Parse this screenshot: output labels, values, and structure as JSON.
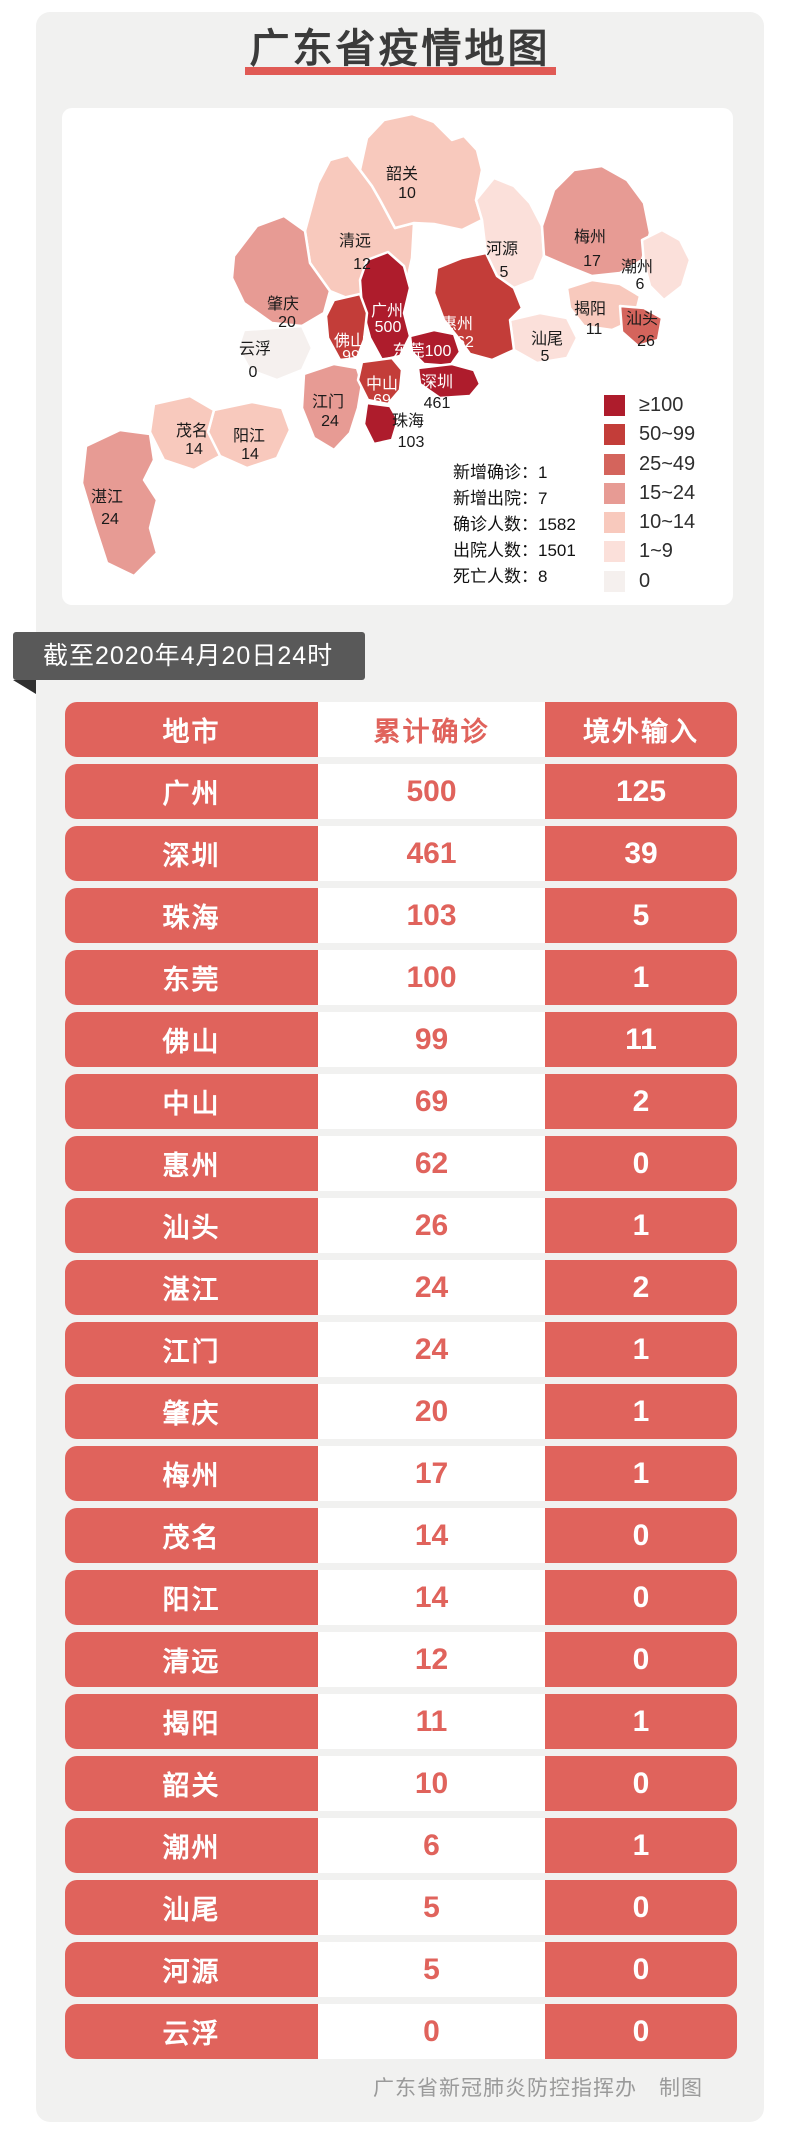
{
  "page": {
    "title": "广东省疫情地图",
    "footer": "广东省新冠肺炎防控指挥办　制图"
  },
  "banner": {
    "text": "截至2020年4月20日24时"
  },
  "colors": {
    "accent_red": "#e0635c",
    "title_underline": "#e05a55",
    "banner_bg": "#595959",
    "card_bg": "#f1f1f0",
    "tiers": [
      "#ae1c2c",
      "#c33d39",
      "#d4645c",
      "#e79b94",
      "#f8c9bd",
      "#fbe0da",
      "#f5f0ee"
    ]
  },
  "map": {
    "legend": [
      {
        "label": "≥100",
        "color": "#ae1c2c"
      },
      {
        "label": "50~99",
        "color": "#c33d39"
      },
      {
        "label": "25~49",
        "color": "#d4645c"
      },
      {
        "label": "15~24",
        "color": "#e79b94"
      },
      {
        "label": "10~14",
        "color": "#f8c9bd"
      },
      {
        "label": "1~9",
        "color": "#fbe0da"
      },
      {
        "label": "0",
        "color": "#f5f0ee"
      }
    ],
    "stats": [
      {
        "label": "新增确诊",
        "value": "1"
      },
      {
        "label": "新增出院",
        "value": "7"
      },
      {
        "label": "确诊人数",
        "value": "1582"
      },
      {
        "label": "出院人数",
        "value": "1501"
      },
      {
        "label": "死亡人数",
        "value": "8"
      }
    ],
    "cities": [
      {
        "id": "shaoguan",
        "name": "韶关",
        "value": "10",
        "tier": 4,
        "nx": 340,
        "ny": 67,
        "vx": 345,
        "vy": 86,
        "nc": "#1a1a1a",
        "vc": "#1a1a1a",
        "inline": false
      },
      {
        "id": "qingyuan",
        "name": "清远",
        "value": "12",
        "tier": 4,
        "nx": 293,
        "ny": 134,
        "vx": 300,
        "vy": 157,
        "nc": "#1a1a1a",
        "vc": "#1a1a1a",
        "inline": false
      },
      {
        "id": "heyuan",
        "name": "河源",
        "value": "5",
        "tier": 5,
        "nx": 440,
        "ny": 142,
        "vx": 442,
        "vy": 165,
        "nc": "#1a1a1a",
        "vc": "#1a1a1a",
        "inline": false
      },
      {
        "id": "meizhou",
        "name": "梅州",
        "value": "17",
        "tier": 3,
        "nx": 528,
        "ny": 130,
        "vx": 530,
        "vy": 154,
        "nc": "#1a1a1a",
        "vc": "#1a1a1a",
        "inline": false
      },
      {
        "id": "chaozhou",
        "name": "潮州",
        "value": "6",
        "tier": 5,
        "nx": 575,
        "ny": 160,
        "vx": 578,
        "vy": 177,
        "nc": "#1a1a1a",
        "vc": "#1a1a1a",
        "inline": false
      },
      {
        "id": "jieyang",
        "name": "揭阳",
        "value": "11",
        "tier": 4,
        "nx": 528,
        "ny": 202,
        "vx": 532,
        "vy": 222,
        "nc": "#1a1a1a",
        "vc": "#1a1a1a",
        "inline": false
      },
      {
        "id": "shantou",
        "name": "汕头",
        "value": "26",
        "tier": 2,
        "nx": 580,
        "ny": 212,
        "vx": 584,
        "vy": 234,
        "nc": "#1a1a1a",
        "vc": "#1a1a1a",
        "inline": false
      },
      {
        "id": "shanwei",
        "name": "汕尾",
        "value": "5",
        "tier": 5,
        "nx": 485,
        "ny": 232,
        "vx": 483,
        "vy": 249,
        "nc": "#1a1a1a",
        "vc": "#1a1a1a",
        "inline": false
      },
      {
        "id": "huizhou",
        "name": "惠州",
        "value": "62",
        "tier": 1,
        "nx": 395,
        "ny": 217,
        "vx": 403,
        "vy": 235,
        "nc": "#ffffff",
        "vc": "#ffffff",
        "inline": false
      },
      {
        "id": "zhaoqing",
        "name": "肇庆",
        "value": "20",
        "tier": 3,
        "nx": 221,
        "ny": 197,
        "vx": 225,
        "vy": 215,
        "nc": "#1a1a1a",
        "vc": "#1a1a1a",
        "inline": false
      },
      {
        "id": "yunfu",
        "name": "云浮",
        "value": "0",
        "tier": 6,
        "nx": 193,
        "ny": 242,
        "vx": 191,
        "vy": 265,
        "nc": "#1a1a1a",
        "vc": "#1a1a1a",
        "inline": false
      },
      {
        "id": "guangzhou",
        "name": "广州",
        "value": "500",
        "tier": 0,
        "nx": 325,
        "ny": 204,
        "vx": 326,
        "vy": 220,
        "nc": "#ffffff",
        "vc": "#ffffff",
        "inline": false
      },
      {
        "id": "foshan",
        "name": "佛山",
        "value": "99",
        "tier": 1,
        "nx": 288,
        "ny": 234,
        "vx": 289,
        "vy": 249,
        "nc": "#ffffff",
        "vc": "#ffffff",
        "inline": false
      },
      {
        "id": "dongguan",
        "name": "东莞",
        "value": "100",
        "tier": 0,
        "nx": 360,
        "ny": 244,
        "vx": 360,
        "vy": 244,
        "nc": "#ffffff",
        "vc": "#ffffff",
        "inline": true
      },
      {
        "id": "shenzhen",
        "name": "深圳",
        "value": "461",
        "tier": 0,
        "nx": 375,
        "ny": 275,
        "vx": 375,
        "vy": 296,
        "nc": "#ffffff",
        "vc": "#1a1a1a",
        "inline": false
      },
      {
        "id": "zhongshan",
        "name": "中山",
        "value": "69",
        "tier": 1,
        "nx": 320,
        "ny": 277,
        "vx": 320,
        "vy": 293,
        "nc": "#ffffff",
        "vc": "#ffffff",
        "inline": false
      },
      {
        "id": "zhuhai",
        "name": "珠海",
        "value": "103",
        "tier": 0,
        "nx": 346,
        "ny": 314,
        "vx": 349,
        "vy": 335,
        "nc": "#1a1a1a",
        "vc": "#1a1a1a",
        "inline": false
      },
      {
        "id": "jiangmen",
        "name": "江门",
        "value": "24",
        "tier": 3,
        "nx": 266,
        "ny": 295,
        "vx": 268,
        "vy": 314,
        "nc": "#1a1a1a",
        "vc": "#1a1a1a",
        "inline": false
      },
      {
        "id": "yangjiang",
        "name": "阳江",
        "value": "14",
        "tier": 4,
        "nx": 187,
        "ny": 329,
        "vx": 188,
        "vy": 347,
        "nc": "#1a1a1a",
        "vc": "#1a1a1a",
        "inline": false
      },
      {
        "id": "maoming",
        "name": "茂名",
        "value": "14",
        "tier": 4,
        "nx": 130,
        "ny": 324,
        "vx": 132,
        "vy": 342,
        "nc": "#1a1a1a",
        "vc": "#1a1a1a",
        "inline": false
      },
      {
        "id": "zhanjiang",
        "name": "湛江",
        "value": "24",
        "tier": 3,
        "nx": 45,
        "ny": 390,
        "vx": 48,
        "vy": 412,
        "nc": "#1a1a1a",
        "vc": "#1a1a1a",
        "inline": false
      }
    ]
  },
  "table": {
    "headers": [
      "地市",
      "累计确诊",
      "境外输入"
    ],
    "rows": [
      [
        "广州",
        "500",
        "125"
      ],
      [
        "深圳",
        "461",
        "39"
      ],
      [
        "珠海",
        "103",
        "5"
      ],
      [
        "东莞",
        "100",
        "1"
      ],
      [
        "佛山",
        "99",
        "11"
      ],
      [
        "中山",
        "69",
        "2"
      ],
      [
        "惠州",
        "62",
        "0"
      ],
      [
        "汕头",
        "26",
        "1"
      ],
      [
        "湛江",
        "24",
        "2"
      ],
      [
        "江门",
        "24",
        "1"
      ],
      [
        "肇庆",
        "20",
        "1"
      ],
      [
        "梅州",
        "17",
        "1"
      ],
      [
        "茂名",
        "14",
        "0"
      ],
      [
        "阳江",
        "14",
        "0"
      ],
      [
        "清远",
        "12",
        "0"
      ],
      [
        "揭阳",
        "11",
        "1"
      ],
      [
        "韶关",
        "10",
        "0"
      ],
      [
        "潮州",
        "6",
        "1"
      ],
      [
        "汕尾",
        "5",
        "0"
      ],
      [
        "河源",
        "5",
        "0"
      ],
      [
        "云浮",
        "0",
        "0"
      ]
    ]
  },
  "chart_data": {
    "type": "heatmap",
    "title": "广东省疫情地图",
    "categories": [
      "广州",
      "深圳",
      "珠海",
      "东莞",
      "佛山",
      "中山",
      "惠州",
      "汕头",
      "湛江",
      "江门",
      "肇庆",
      "梅州",
      "茂名",
      "阳江",
      "清远",
      "揭阳",
      "韶关",
      "潮州",
      "汕尾",
      "河源",
      "云浮"
    ],
    "series": [
      {
        "name": "累计确诊",
        "values": [
          500,
          461,
          103,
          100,
          99,
          69,
          62,
          26,
          24,
          24,
          20,
          17,
          14,
          14,
          12,
          11,
          10,
          6,
          5,
          5,
          0
        ]
      },
      {
        "name": "境外输入",
        "values": [
          125,
          39,
          5,
          1,
          11,
          2,
          0,
          1,
          2,
          1,
          1,
          1,
          0,
          0,
          0,
          1,
          0,
          1,
          0,
          0,
          0
        ]
      }
    ],
    "legend_bins": [
      "≥100",
      "50~99",
      "25~49",
      "15~24",
      "10~14",
      "1~9",
      "0"
    ]
  }
}
